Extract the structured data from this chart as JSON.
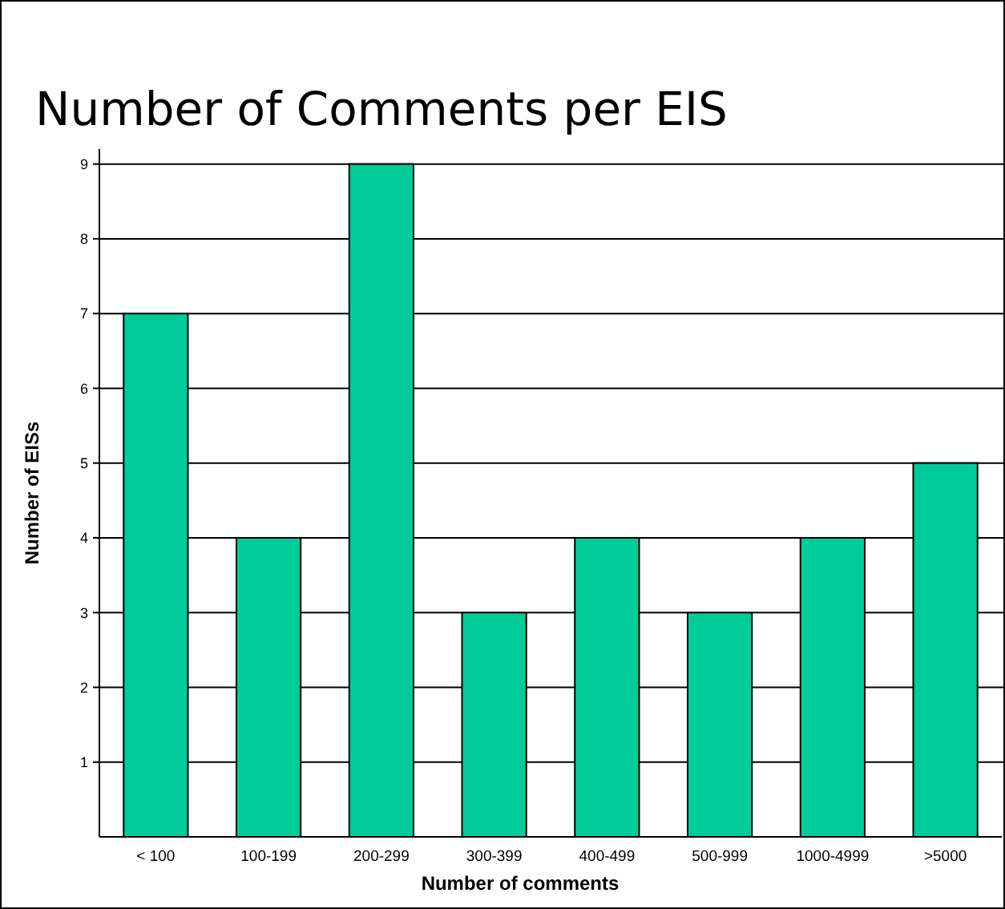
{
  "chart_data": {
    "type": "bar",
    "title": "Number of Comments per EIS",
    "xlabel": "Number of comments",
    "ylabel": "Number of EISs",
    "categories": [
      "< 100",
      "100-199",
      "200-299",
      "300-399",
      "400-499",
      "500-999",
      "1000-4999",
      ">5000"
    ],
    "values": [
      7,
      4,
      9,
      3,
      4,
      3,
      4,
      5
    ],
    "color": "#00cc99",
    "ylim": [
      0,
      9.2
    ],
    "yticks": [
      1,
      2,
      3,
      4,
      5,
      6,
      7,
      8,
      9
    ],
    "grid": "y"
  }
}
